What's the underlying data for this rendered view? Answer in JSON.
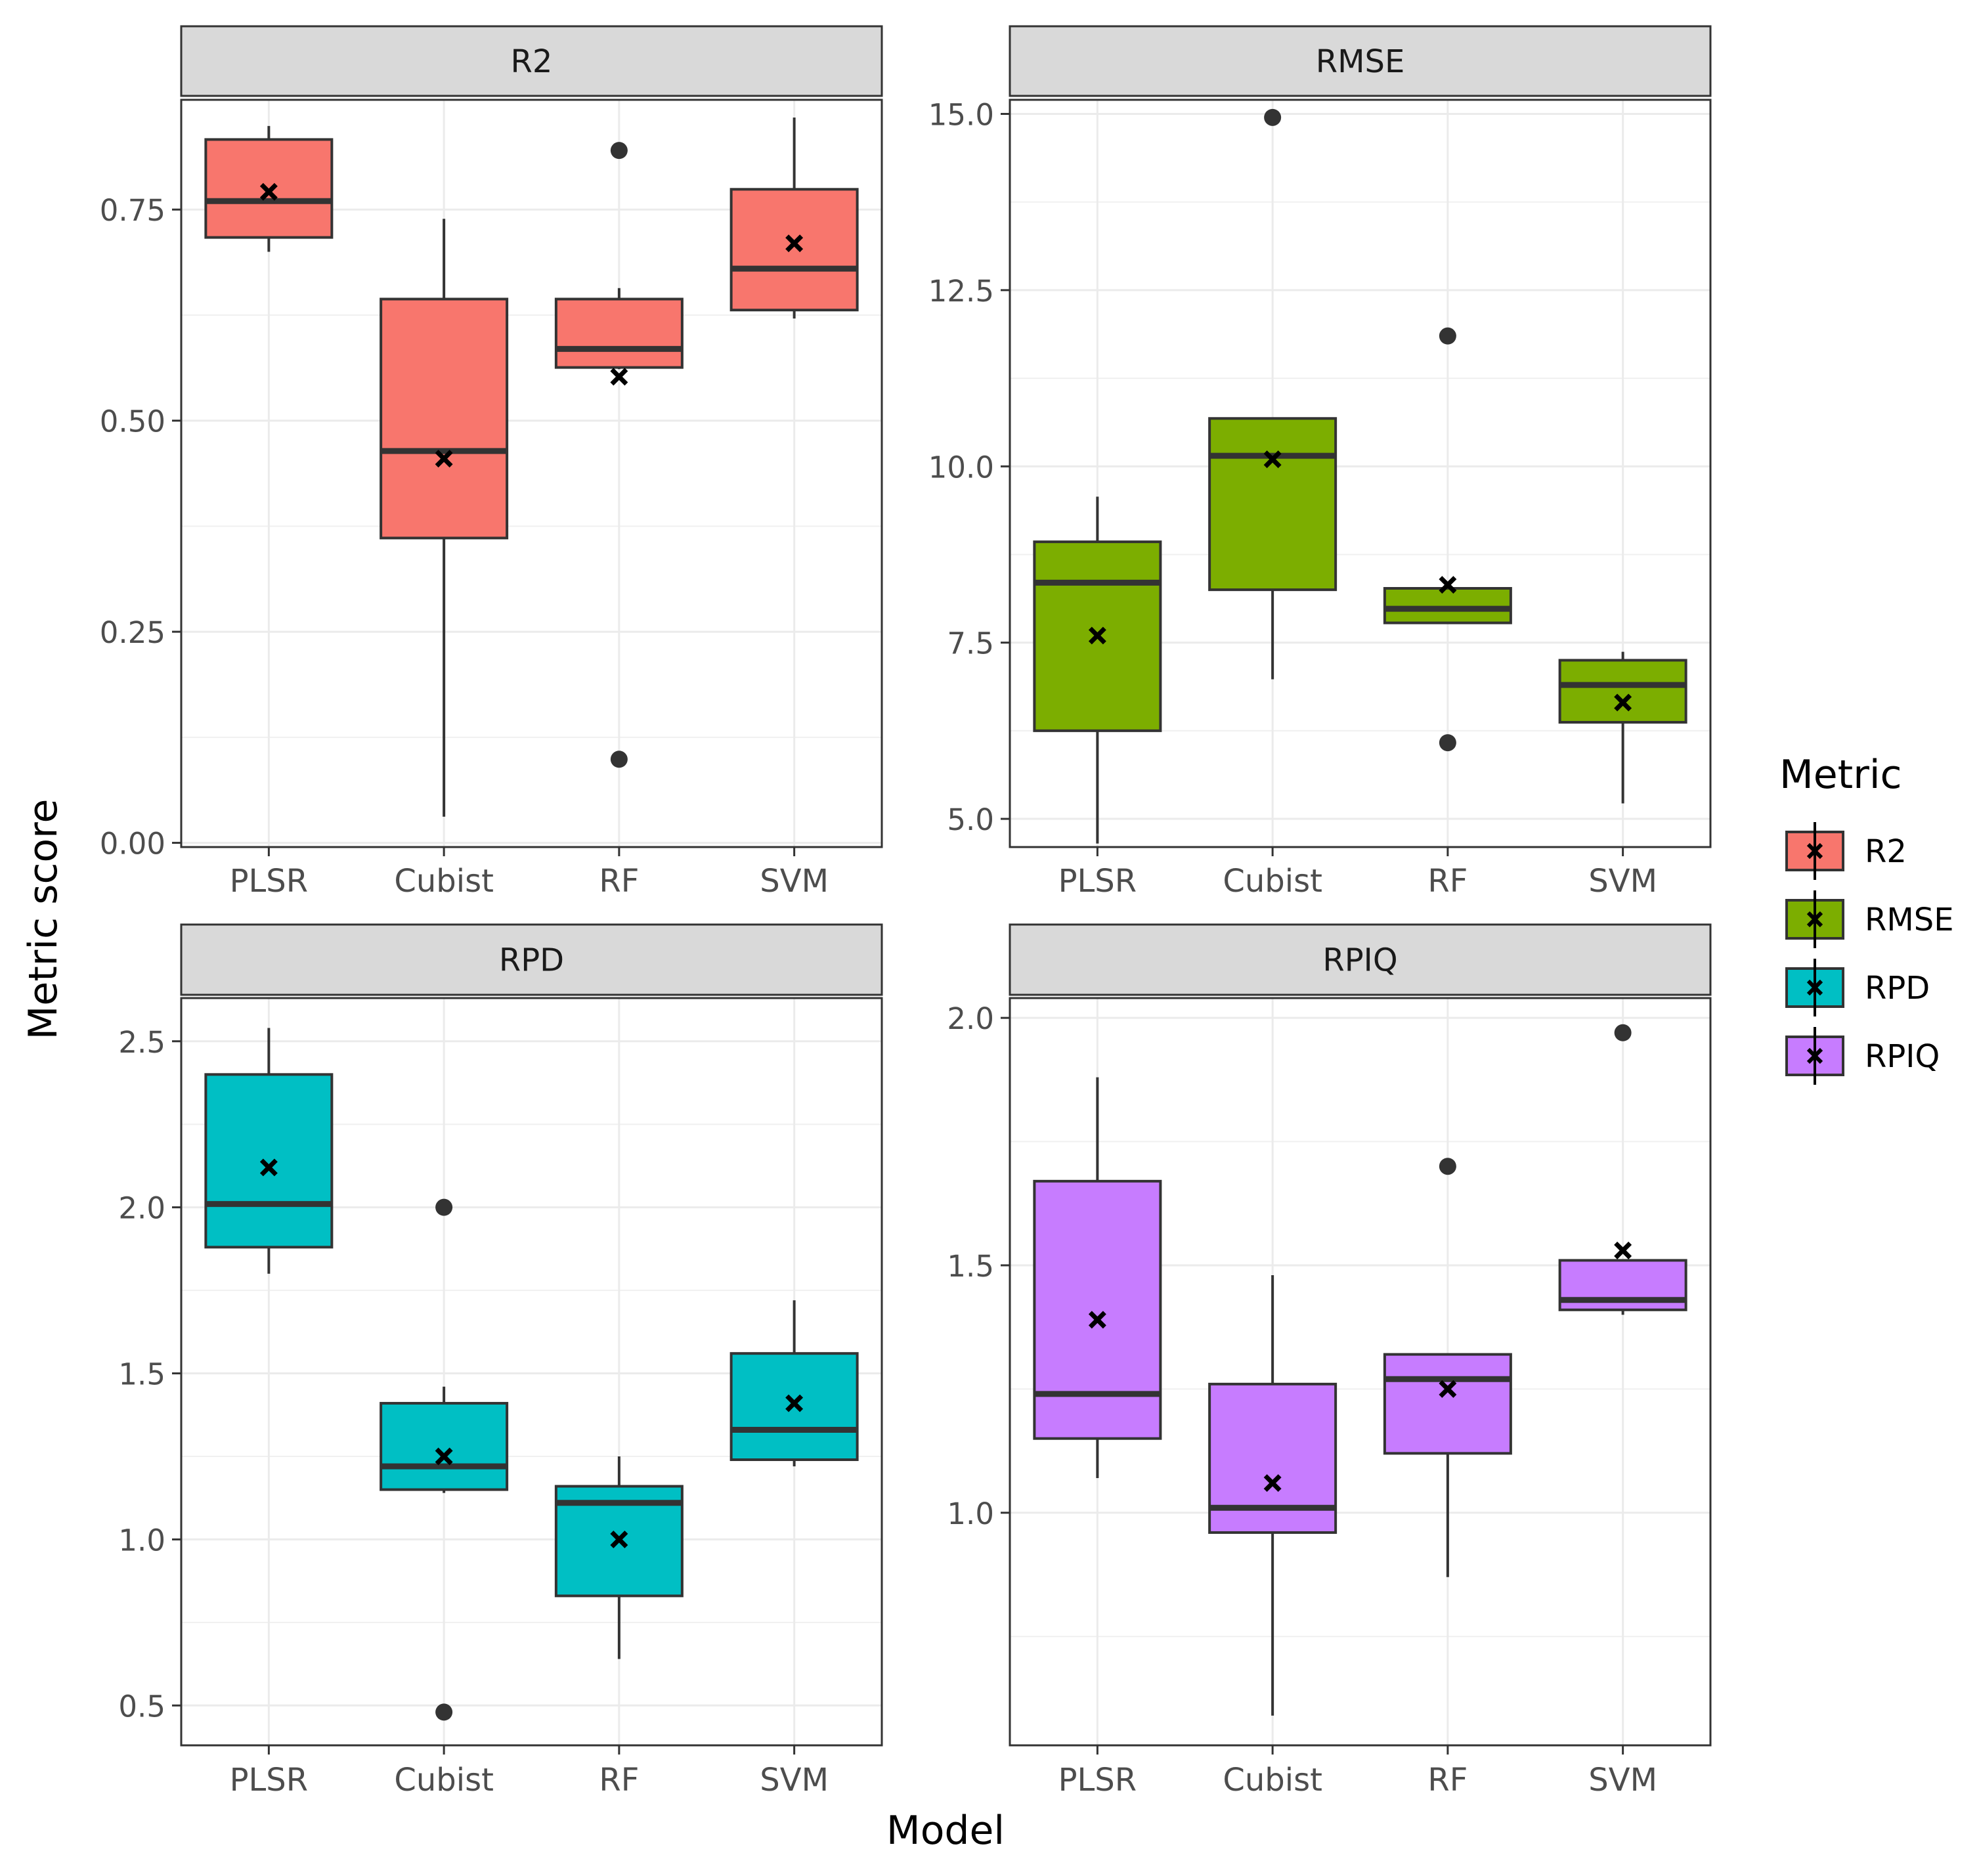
{
  "chart_data": {
    "type": "boxplot",
    "layout": "facet-grid-2x2",
    "xlabel": "Model",
    "ylabel": "Metric score",
    "categories": [
      "PLSR",
      "Cubist",
      "RF",
      "SVM"
    ],
    "legend": {
      "title": "Metric",
      "position": "right",
      "entries": [
        {
          "label": "R2",
          "color": "#F8766D"
        },
        {
          "label": "RMSE",
          "color": "#7CAE00"
        },
        {
          "label": "RPD",
          "color": "#00BFC4"
        },
        {
          "label": "RPIQ",
          "color": "#C77CFF"
        }
      ]
    },
    "panels": [
      {
        "title": "R2",
        "color": "#F8766D",
        "ylim": [
          -0.005,
          0.88
        ],
        "yticks": [
          0.0,
          0.25,
          0.5,
          0.75
        ],
        "ytick_labels": [
          "0.00",
          "0.25",
          "0.50",
          "0.75"
        ],
        "boxes": [
          {
            "category": "PLSR",
            "lower_whisker": 0.7,
            "q1": 0.717,
            "median": 0.76,
            "q3": 0.833,
            "upper_whisker": 0.849,
            "mean": 0.771,
            "outliers": []
          },
          {
            "category": "Cubist",
            "lower_whisker": 0.031,
            "q1": 0.361,
            "median": 0.464,
            "q3": 0.644,
            "upper_whisker": 0.739,
            "mean": 0.455,
            "outliers": []
          },
          {
            "category": "RF",
            "lower_whisker": 0.561,
            "q1": 0.563,
            "median": 0.585,
            "q3": 0.644,
            "upper_whisker": 0.657,
            "mean": 0.552,
            "outliers": [
              0.82,
              0.099
            ]
          },
          {
            "category": "SVM",
            "lower_whisker": 0.621,
            "q1": 0.631,
            "median": 0.68,
            "q3": 0.774,
            "upper_whisker": 0.859,
            "mean": 0.71,
            "outliers": []
          }
        ]
      },
      {
        "title": "RMSE",
        "color": "#7CAE00",
        "ylim": [
          4.6,
          15.2
        ],
        "yticks": [
          5.0,
          7.5,
          10.0,
          12.5,
          15.0
        ],
        "ytick_labels": [
          "5.0",
          "7.5",
          "10.0",
          "12.5",
          "15.0"
        ],
        "boxes": [
          {
            "category": "PLSR",
            "lower_whisker": 4.65,
            "q1": 6.25,
            "median": 8.35,
            "q3": 8.93,
            "upper_whisker": 9.57,
            "mean": 7.6,
            "outliers": []
          },
          {
            "category": "Cubist",
            "lower_whisker": 6.98,
            "q1": 8.25,
            "median": 10.15,
            "q3": 10.68,
            "upper_whisker": 10.68,
            "mean": 10.1,
            "outliers": [
              14.95
            ]
          },
          {
            "category": "RF",
            "lower_whisker": 7.78,
            "q1": 7.78,
            "median": 7.98,
            "q3": 8.27,
            "upper_whisker": 8.27,
            "mean": 8.32,
            "outliers": [
              11.85,
              6.08
            ]
          },
          {
            "category": "SVM",
            "lower_whisker": 5.22,
            "q1": 6.37,
            "median": 6.9,
            "q3": 7.25,
            "upper_whisker": 7.37,
            "mean": 6.65,
            "outliers": []
          }
        ]
      },
      {
        "title": "RPD",
        "color": "#00BFC4",
        "ylim": [
          0.38,
          2.63
        ],
        "yticks": [
          0.5,
          1.0,
          1.5,
          2.0,
          2.5
        ],
        "ytick_labels": [
          "0.5",
          "1.0",
          "1.5",
          "2.0",
          "2.5"
        ],
        "boxes": [
          {
            "category": "PLSR",
            "lower_whisker": 1.8,
            "q1": 1.88,
            "median": 2.01,
            "q3": 2.4,
            "upper_whisker": 2.54,
            "mean": 2.12,
            "outliers": []
          },
          {
            "category": "Cubist",
            "lower_whisker": 1.14,
            "q1": 1.15,
            "median": 1.22,
            "q3": 1.41,
            "upper_whisker": 1.46,
            "mean": 1.25,
            "outliers": [
              2.0,
              0.48
            ]
          },
          {
            "category": "RF",
            "lower_whisker": 0.64,
            "q1": 0.83,
            "median": 1.11,
            "q3": 1.16,
            "upper_whisker": 1.25,
            "mean": 1.0,
            "outliers": []
          },
          {
            "category": "SVM",
            "lower_whisker": 1.22,
            "q1": 1.24,
            "median": 1.33,
            "q3": 1.56,
            "upper_whisker": 1.72,
            "mean": 1.41,
            "outliers": []
          }
        ]
      },
      {
        "title": "RPIQ",
        "color": "#C77CFF",
        "ylim": [
          0.53,
          2.04
        ],
        "yticks": [
          1.0,
          1.5,
          2.0
        ],
        "ytick_labels": [
          "1.0",
          "1.5",
          "2.0"
        ],
        "boxes": [
          {
            "category": "PLSR",
            "lower_whisker": 1.07,
            "q1": 1.15,
            "median": 1.24,
            "q3": 1.67,
            "upper_whisker": 1.88,
            "mean": 1.39,
            "outliers": []
          },
          {
            "category": "Cubist",
            "lower_whisker": 0.59,
            "q1": 0.96,
            "median": 1.01,
            "q3": 1.26,
            "upper_whisker": 1.48,
            "mean": 1.06,
            "outliers": []
          },
          {
            "category": "RF",
            "lower_whisker": 0.87,
            "q1": 1.12,
            "median": 1.27,
            "q3": 1.32,
            "upper_whisker": 1.32,
            "mean": 1.25,
            "outliers": [
              1.7
            ]
          },
          {
            "category": "SVM",
            "lower_whisker": 1.4,
            "q1": 1.41,
            "median": 1.43,
            "q3": 1.51,
            "upper_whisker": 1.51,
            "mean": 1.53,
            "outliers": [
              1.97
            ]
          }
        ]
      }
    ]
  }
}
